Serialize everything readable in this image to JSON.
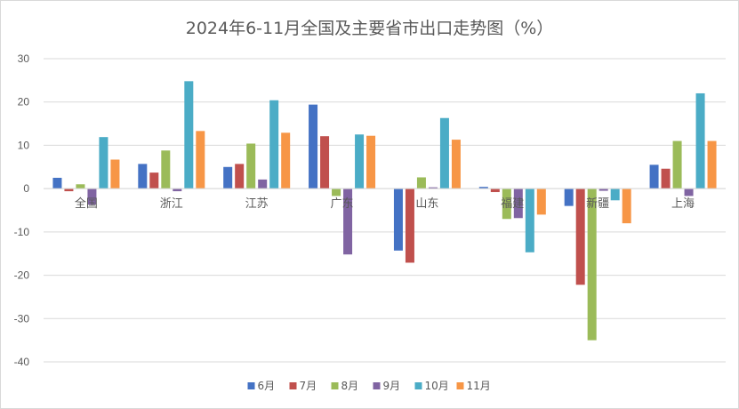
{
  "chart_data": {
    "type": "bar",
    "title": "2024年6-11月全国及主要省市出口走势图（%）",
    "categories": [
      "全国",
      "浙江",
      "江苏",
      "广东",
      "山东",
      "福建",
      "新疆",
      "上海"
    ],
    "series": [
      {
        "name": "6月",
        "color": "#4472c4",
        "values": [
          2.5,
          5.7,
          5.0,
          19.4,
          -14.3,
          0.4,
          -4.0,
          5.5
        ]
      },
      {
        "name": "7月",
        "color": "#c0504d",
        "values": [
          -0.6,
          3.7,
          5.7,
          12.1,
          -17.1,
          -0.8,
          -22.2,
          4.6
        ]
      },
      {
        "name": "8月",
        "color": "#9bbb59",
        "values": [
          1.0,
          8.8,
          10.4,
          -1.7,
          2.6,
          -7.0,
          -35.0,
          11.0
        ]
      },
      {
        "name": "9月",
        "color": "#8064a2",
        "values": [
          -3.7,
          -0.6,
          2.1,
          -15.2,
          0.3,
          -6.8,
          -0.5,
          -1.7
        ]
      },
      {
        "name": "10月",
        "color": "#4bacc6",
        "values": [
          11.9,
          24.8,
          20.4,
          12.5,
          16.3,
          -14.7,
          -2.7,
          22.0
        ]
      },
      {
        "name": "11月",
        "color": "#f79646",
        "values": [
          6.7,
          13.3,
          12.9,
          12.2,
          11.3,
          -6.0,
          -8.0,
          11.0
        ]
      }
    ],
    "ylim": [
      -40,
      30
    ],
    "yticks": [
      30,
      20,
      10,
      0,
      -10,
      -20,
      -30,
      -40
    ],
    "grid": true,
    "legend_position": "bottom",
    "xlabel": "",
    "ylabel": ""
  }
}
